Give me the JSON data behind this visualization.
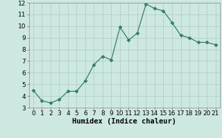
{
  "x": [
    0,
    1,
    2,
    3,
    4,
    5,
    6,
    7,
    8,
    9,
    10,
    11,
    12,
    13,
    14,
    15,
    16,
    17,
    18,
    19,
    20,
    21
  ],
  "y": [
    4.5,
    3.6,
    3.4,
    3.7,
    4.4,
    4.4,
    5.3,
    6.7,
    7.4,
    7.1,
    9.9,
    8.8,
    9.4,
    11.9,
    11.5,
    11.3,
    10.3,
    9.2,
    9.0,
    8.6,
    8.6,
    8.4
  ],
  "line_color": "#2e7d6e",
  "marker": "D",
  "marker_size": 2.5,
  "bg_color": "#cce8e0",
  "grid_color": "#b0c8c0",
  "xlabel": "Humidex (Indice chaleur)",
  "xlim": [
    -0.5,
    21.5
  ],
  "ylim": [
    3,
    12
  ],
  "yticks": [
    3,
    4,
    5,
    6,
    7,
    8,
    9,
    10,
    11,
    12
  ],
  "xticks": [
    0,
    1,
    2,
    3,
    4,
    5,
    6,
    7,
    8,
    9,
    10,
    11,
    12,
    13,
    14,
    15,
    16,
    17,
    18,
    19,
    20,
    21
  ],
  "xlabel_fontsize": 7.5,
  "tick_fontsize": 6.5
}
